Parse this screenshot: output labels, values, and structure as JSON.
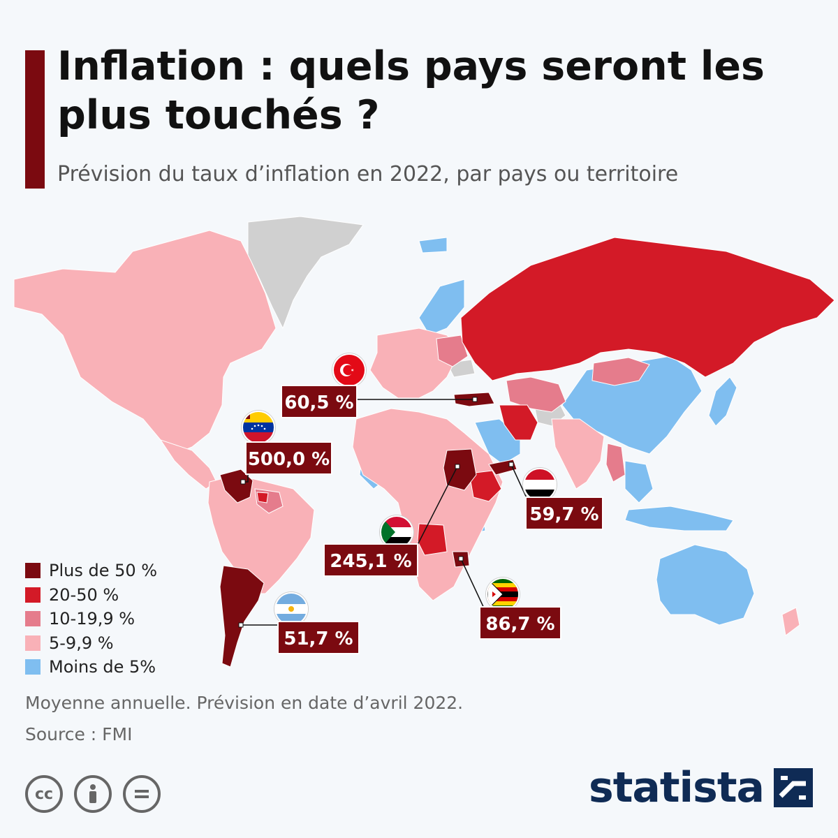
{
  "title": "Inflation : quels pays seront les plus touchés ?",
  "subtitle": "Prévision du taux d’inflation en 2022, par pays ou territoire",
  "legend": [
    {
      "label": "Plus de 50 %",
      "color": "#7b0a10"
    },
    {
      "label": "20-50 %",
      "color": "#d31a27"
    },
    {
      "label": "10-19,9 %",
      "color": "#e57c8c"
    },
    {
      "label": "5-9,9 %",
      "color": "#f9b1b7"
    },
    {
      "label": "Moins de 5%",
      "color": "#7fbef0"
    }
  ],
  "no_data_color": "#d0d0d0",
  "callouts": [
    {
      "country": "Turquie",
      "value": "60,5 %",
      "flag": "turkey-flag-icon"
    },
    {
      "country": "Venezuela",
      "value": "500,0 %",
      "flag": "venezuela-flag-icon"
    },
    {
      "country": "Yémen",
      "value": "59,7 %",
      "flag": "yemen-flag-icon"
    },
    {
      "country": "Soudan",
      "value": "245,1 %",
      "flag": "sudan-flag-icon"
    },
    {
      "country": "Zimbabwe",
      "value": "86,7 %",
      "flag": "zimbabwe-flag-icon"
    },
    {
      "country": "Argentine",
      "value": "51,7 %",
      "flag": "argentina-flag-icon"
    }
  ],
  "note": "Moyenne annuelle. Prévision en date d’avril 2022.",
  "source": "Source : FMI",
  "license_icons": [
    "cc-icon",
    "person-icon",
    "equals-icon"
  ],
  "brand": "statista"
}
